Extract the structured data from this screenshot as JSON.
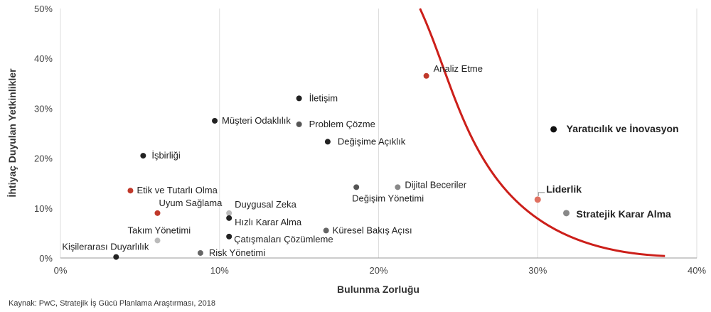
{
  "chart_data": {
    "type": "scatter",
    "xlabel": "Bulunma Zorluğu",
    "ylabel": "İhtiyaç Duyulan Yetkinlikler",
    "xlim": [
      0,
      40
    ],
    "ylim": [
      0,
      50
    ],
    "x_ticks": [
      "0%",
      "10%",
      "20%",
      "30%",
      "40%"
    ],
    "y_ticks": [
      "0%",
      "10%",
      "20%",
      "30%",
      "40%",
      "50%"
    ],
    "grid": "vertical",
    "points": [
      {
        "label": "Kişilerarası Duyarlılık",
        "x": 3.5,
        "y": 0.2,
        "color": "#222222"
      },
      {
        "label": "Takım Yönetimi",
        "x": 6.1,
        "y": 3.5,
        "color": "#bbbbbb"
      },
      {
        "label": "Uyum Sağlama",
        "x": 6.1,
        "y": 9.0,
        "color": "#c0392b"
      },
      {
        "label": "Etik ve Tutarlı Olma",
        "x": 4.4,
        "y": 13.5,
        "color": "#c0392b"
      },
      {
        "label": "İşbirliği",
        "x": 5.2,
        "y": 20.5,
        "color": "#222222"
      },
      {
        "label": "Müşteri Odaklılık",
        "x": 9.7,
        "y": 27.5,
        "color": "#222222"
      },
      {
        "label": "Risk Yönetimi",
        "x": 8.8,
        "y": 1.0,
        "color": "#666666"
      },
      {
        "label": "Duygusal Zeka",
        "x": 10.6,
        "y": 9.0,
        "color": "#bbbbbb"
      },
      {
        "label": "Hızlı Karar Alma",
        "x": 10.6,
        "y": 8.0,
        "color": "#222222"
      },
      {
        "label": "Çatışmaları Çözümleme",
        "x": 10.6,
        "y": 4.3,
        "color": "#222222"
      },
      {
        "label": "İletişim",
        "x": 15.0,
        "y": 32.0,
        "color": "#222222"
      },
      {
        "label": "Problem Çözme",
        "x": 15.0,
        "y": 26.8,
        "color": "#555555"
      },
      {
        "label": "Değişime Açıklık",
        "x": 16.8,
        "y": 23.3,
        "color": "#222222"
      },
      {
        "label": "Küresel Bakış Açısı",
        "x": 16.7,
        "y": 5.5,
        "color": "#666666"
      },
      {
        "label": "Değişim Yönetimi",
        "x": 18.6,
        "y": 14.2,
        "color": "#555555"
      },
      {
        "label": "Dijital Beceriler",
        "x": 21.2,
        "y": 14.2,
        "color": "#888888"
      },
      {
        "label": "Analiz Etme",
        "x": 23.0,
        "y": 36.5,
        "color": "#c0392b"
      },
      {
        "label": "Yaratıcılık ve İnovasyon",
        "x": 31.0,
        "y": 25.8,
        "color": "#111111",
        "bold": true
      },
      {
        "label": "Liderlik",
        "x": 30.0,
        "y": 11.7,
        "color": "#e07060",
        "bold": true
      },
      {
        "label": "Stratejik Karar Alma",
        "x": 31.8,
        "y": 9.0,
        "color": "#888888",
        "bold": true
      }
    ],
    "curve_color": "#cc1f1a"
  },
  "source": "Kaynak: PwC, Stratejik İş Gücü Planlama Araştırması, 2018"
}
